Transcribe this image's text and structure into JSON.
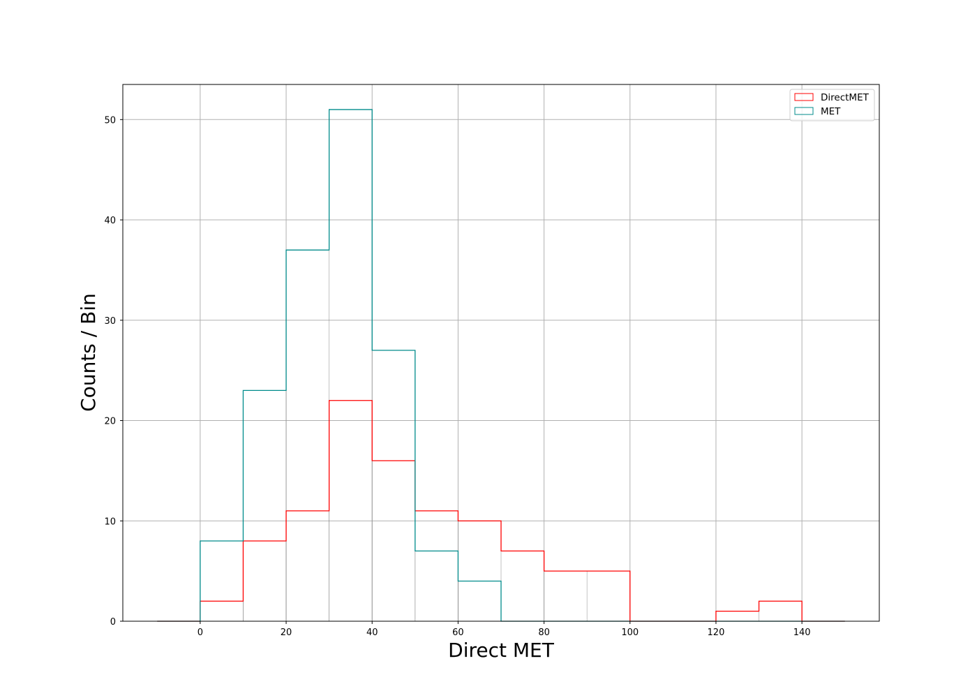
{
  "chart_data": {
    "type": "histogram",
    "title": "",
    "xlabel": "Direct MET",
    "ylabel": "Counts / Bin",
    "xlim": [
      -18,
      158
    ],
    "ylim": [
      0,
      53.5
    ],
    "xticks": [
      0,
      20,
      40,
      60,
      80,
      100,
      120,
      140
    ],
    "yticks": [
      0,
      10,
      20,
      30,
      40,
      50
    ],
    "grid": true,
    "legend_position": "top-right",
    "bin_edges": [
      -10,
      0,
      10,
      20,
      30,
      40,
      50,
      60,
      70,
      80,
      90,
      100,
      110,
      120,
      130,
      140,
      150
    ],
    "series": [
      {
        "name": "DirectMET",
        "color": "#ff0000",
        "style": "step",
        "values": [
          0,
          2,
          8,
          11,
          22,
          16,
          11,
          10,
          7,
          5,
          5,
          0,
          0,
          1,
          2,
          0
        ]
      },
      {
        "name": "MET",
        "color": "#008b8b",
        "style": "step",
        "values": [
          0,
          8,
          23,
          37,
          51,
          27,
          7,
          4,
          0,
          0,
          0,
          0,
          0,
          0,
          0,
          0
        ]
      }
    ],
    "colors": {
      "grid": "#b0b0b0",
      "frame": "#000000",
      "hist_fill": "#ffffff"
    }
  }
}
